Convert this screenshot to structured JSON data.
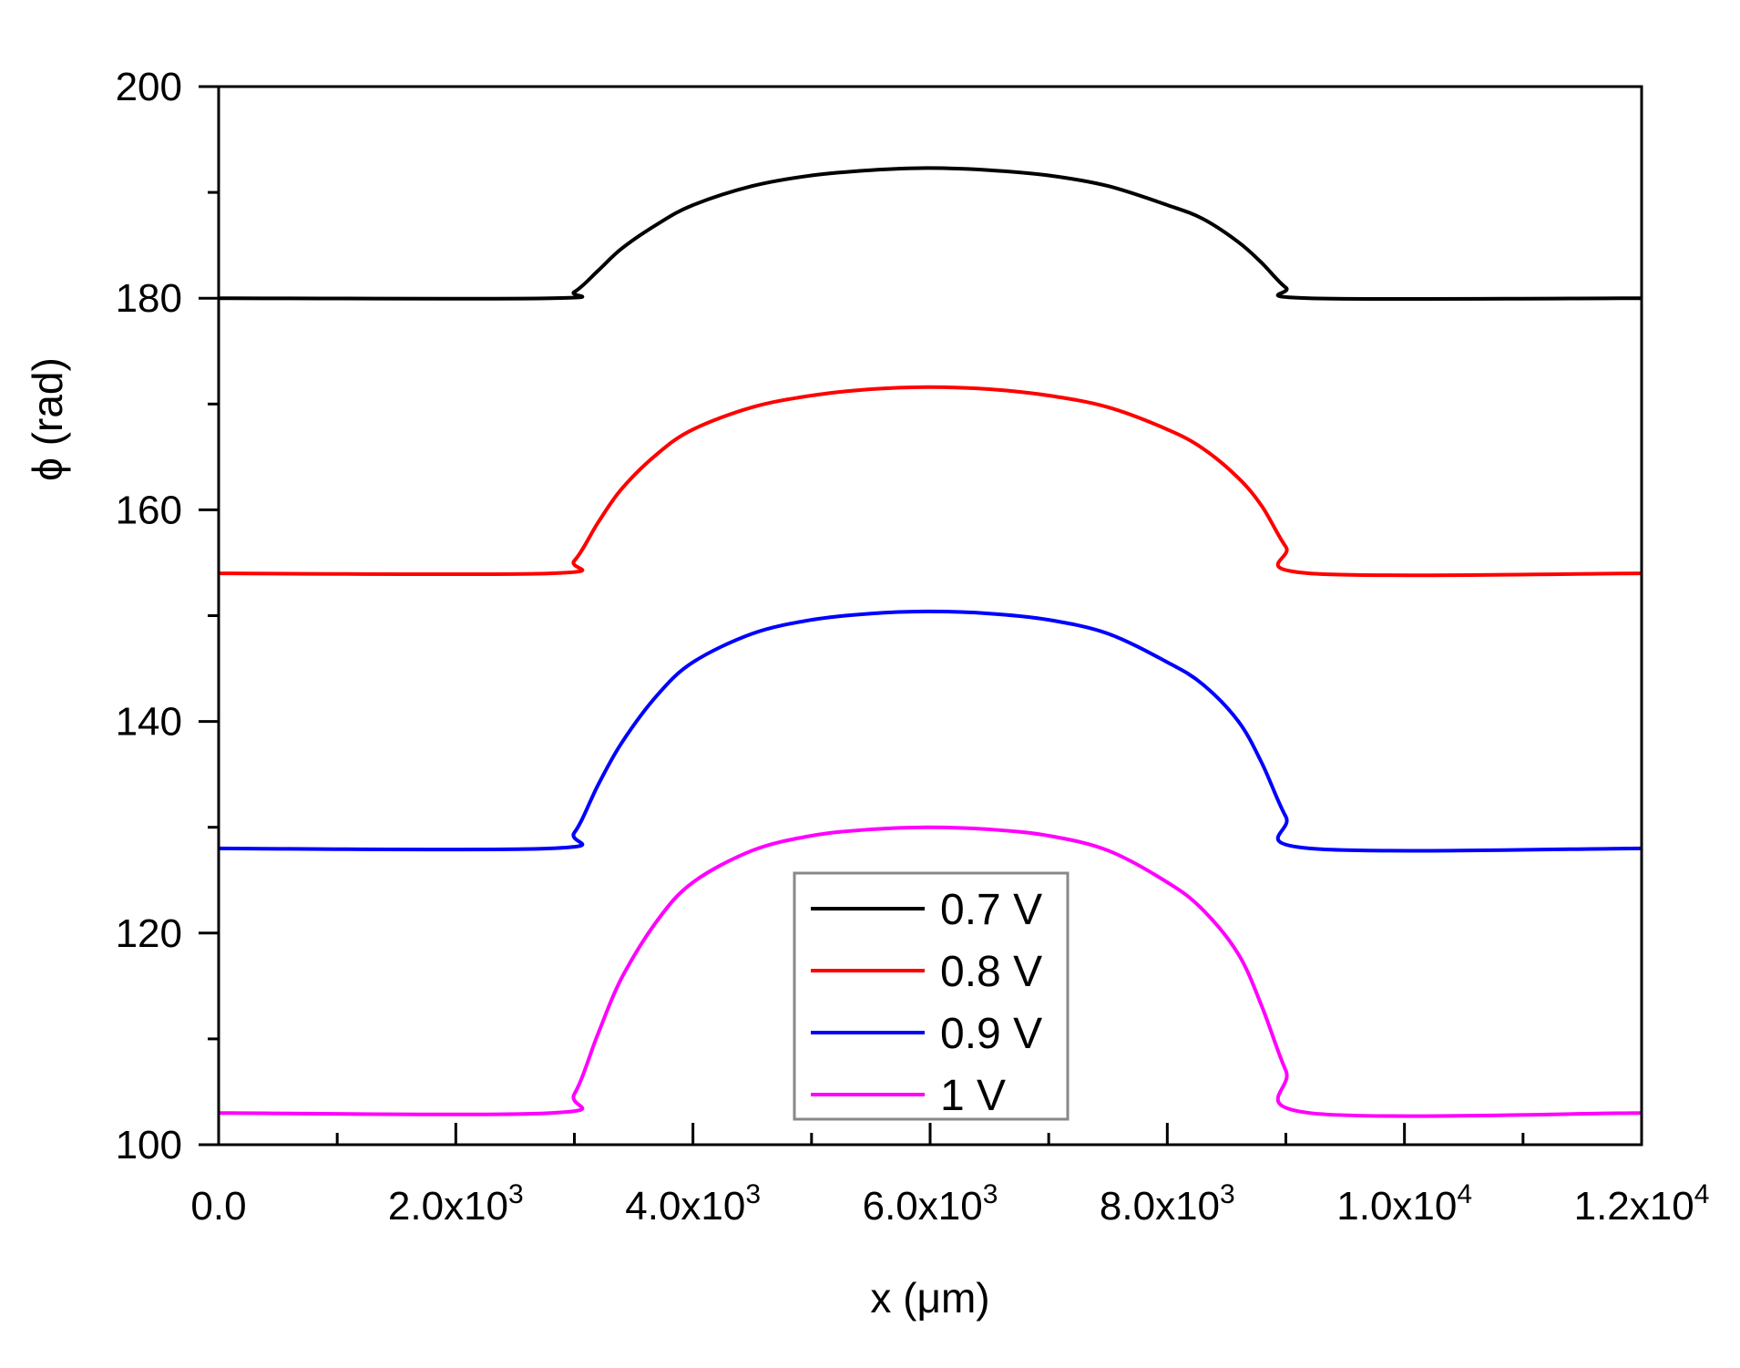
{
  "chart_data": {
    "type": "line",
    "title": "",
    "xlabel": "x (μm)",
    "ylabel": "ϕ (rad)",
    "xlim": [
      0,
      12000
    ],
    "ylim": [
      100,
      200
    ],
    "x_ticks": [
      {
        "value": 0,
        "mantissa": "0.0",
        "exponent": ""
      },
      {
        "value": 2000,
        "mantissa": "2.0x10",
        "exponent": "3"
      },
      {
        "value": 4000,
        "mantissa": "4.0x10",
        "exponent": "3"
      },
      {
        "value": 6000,
        "mantissa": "6.0x10",
        "exponent": "3"
      },
      {
        "value": 8000,
        "mantissa": "8.0x10",
        "exponent": "3"
      },
      {
        "value": 10000,
        "mantissa": "1.0x10",
        "exponent": "4"
      },
      {
        "value": 12000,
        "mantissa": "1.2x10",
        "exponent": "4"
      }
    ],
    "y_ticks": [
      "100",
      "120",
      "140",
      "160",
      "180",
      "200"
    ],
    "grid": false,
    "legend_position": "bottom-center",
    "x": [
      0,
      2800,
      3000,
      3200,
      3400,
      3700,
      4000,
      4500,
      5000,
      5500,
      6000,
      6500,
      7000,
      7500,
      8000,
      8300,
      8600,
      8800,
      9000,
      9200,
      12000
    ],
    "series": [
      {
        "name": "0.7 V",
        "color": "#000000",
        "values": [
          180,
          180,
          180.6,
          182.6,
          184.7,
          187.0,
          188.8,
          190.6,
          191.6,
          192.1,
          192.3,
          192.1,
          191.6,
          190.6,
          188.8,
          187.5,
          185.3,
          183.3,
          181.0,
          180,
          180
        ]
      },
      {
        "name": "0.8 V",
        "color": "#ff0000",
        "values": [
          154,
          154,
          155.2,
          158.8,
          162.0,
          165.3,
          167.6,
          169.7,
          170.8,
          171.4,
          171.6,
          171.4,
          170.8,
          169.7,
          167.6,
          165.8,
          163.0,
          160.3,
          156.5,
          154,
          154
        ]
      },
      {
        "name": "0.9 V",
        "color": "#0000ff",
        "values": [
          128,
          128,
          129.5,
          134.0,
          138.0,
          142.5,
          145.6,
          148.3,
          149.6,
          150.2,
          150.4,
          150.2,
          149.6,
          148.3,
          145.6,
          143.5,
          140.0,
          136.0,
          131.0,
          128,
          128
        ]
      },
      {
        "name": "1 V",
        "color": "#ff00ff",
        "values": [
          103,
          103,
          104.8,
          110.5,
          115.8,
          121.2,
          124.8,
          127.8,
          129.2,
          129.8,
          130.0,
          129.8,
          129.2,
          127.8,
          124.8,
          122.2,
          118.0,
          113.0,
          107.0,
          103,
          103
        ]
      }
    ]
  }
}
